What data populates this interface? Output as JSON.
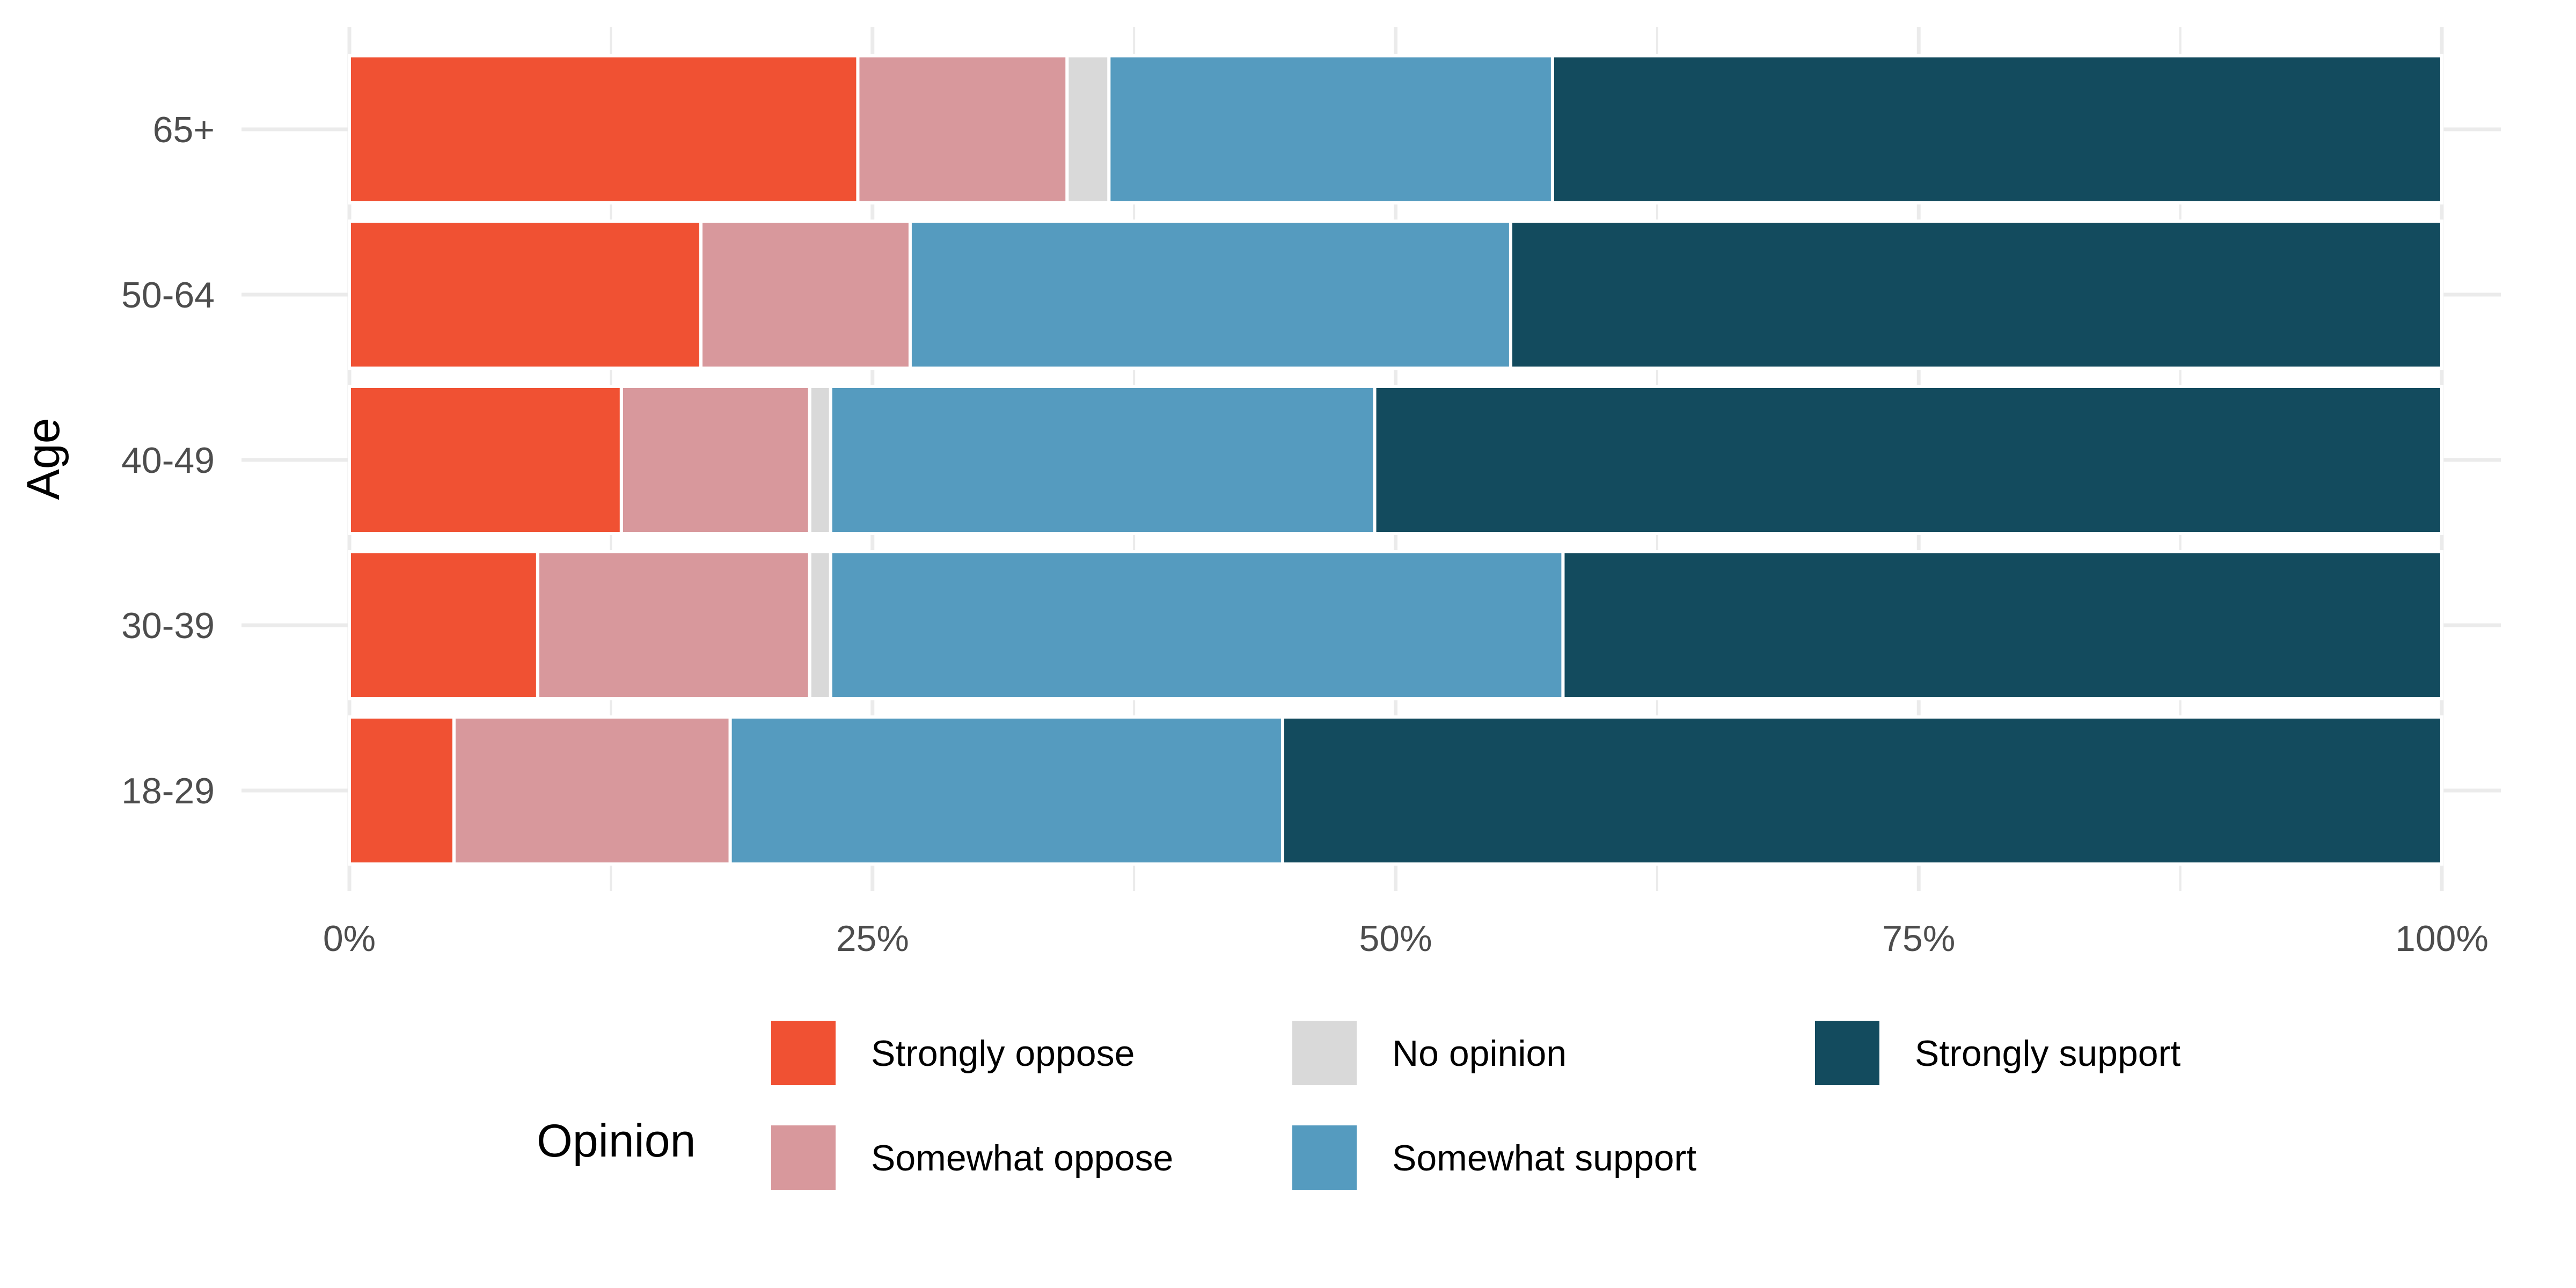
{
  "chart_data": {
    "type": "bar",
    "orientation": "horizontal",
    "stacked": "percent",
    "categories": [
      "18-29",
      "30-39",
      "40-49",
      "50-64",
      "65+"
    ],
    "series": [
      {
        "name": "Strongly oppose",
        "color": "#F05133",
        "values": [
          5.0,
          9.0,
          13.0,
          16.8,
          24.3
        ]
      },
      {
        "name": "Somewhat oppose",
        "color": "#D8989C",
        "values": [
          13.2,
          13.0,
          9.0,
          10.0,
          10.0
        ]
      },
      {
        "name": "No opinion",
        "color": "#D9D9D9",
        "values": [
          0.0,
          1.0,
          1.0,
          0.0,
          2.0
        ]
      },
      {
        "name": "Somewhat support",
        "color": "#559BBF",
        "values": [
          26.4,
          35.0,
          26.0,
          28.7,
          21.2
        ]
      },
      {
        "name": "Strongly support",
        "color": "#134B5E",
        "values": [
          55.4,
          42.0,
          51.0,
          44.5,
          42.5
        ]
      }
    ],
    "x_ticks": [
      "0%",
      "25%",
      "50%",
      "75%",
      "100%"
    ],
    "xlim": [
      0,
      100
    ],
    "ylabel": "Age",
    "xlabel": "",
    "legend_title": "Opinion",
    "legend_position": "bottom",
    "grid": true
  }
}
